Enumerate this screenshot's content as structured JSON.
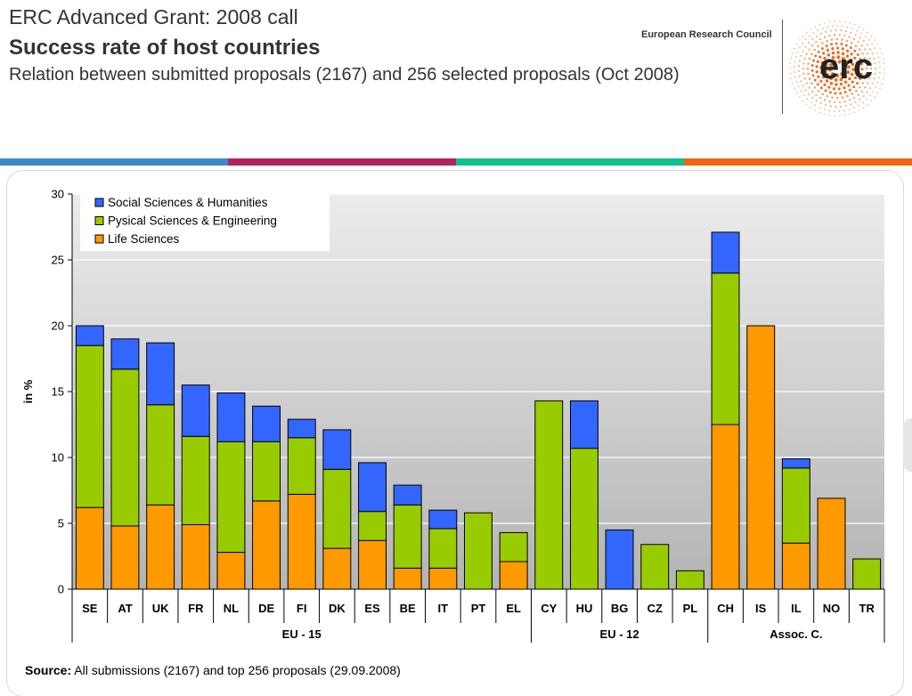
{
  "header": {
    "title": "ERC Advanced Grant: 2008 call",
    "subtitle": "Success rate of host countries",
    "description": "Relation between submitted proposals (2167) and 256 selected proposals (Oct 2008)",
    "organization": "European Research Council",
    "logo_text": "erc",
    "logo_icon": "erc-dot-sunburst-logo"
  },
  "stripe_colors": [
    "#3a8ac8",
    "#b0245e",
    "#12c08c",
    "#ee6411"
  ],
  "footer": {
    "source_label": "Source:",
    "source_text": "All submissions (2167) and top 256 proposals (29.09.2008)"
  },
  "chart_data": {
    "type": "bar",
    "stacked": true,
    "ylabel": "in %",
    "xlabel": "",
    "ylim": [
      0,
      30
    ],
    "yticks": [
      0,
      5,
      10,
      15,
      20,
      25,
      30
    ],
    "grid": true,
    "legend_position": "top-left",
    "categories": [
      "SE",
      "AT",
      "UK",
      "FR",
      "NL",
      "DE",
      "FI",
      "DK",
      "ES",
      "BE",
      "IT",
      "PT",
      "EL",
      "CY",
      "HU",
      "BG",
      "CZ",
      "PL",
      "CH",
      "IS",
      "IL",
      "NO",
      "TR"
    ],
    "groups": [
      {
        "name": "EU - 15",
        "categories": [
          "SE",
          "AT",
          "UK",
          "FR",
          "NL",
          "DE",
          "FI",
          "DK",
          "ES",
          "BE",
          "IT",
          "PT",
          "EL"
        ]
      },
      {
        "name": "EU - 12",
        "categories": [
          "CY",
          "HU",
          "BG",
          "CZ",
          "PL"
        ]
      },
      {
        "name": "Assoc. C.",
        "categories": [
          "CH",
          "IS",
          "IL",
          "NO",
          "TR"
        ]
      }
    ],
    "series": [
      {
        "name": "Life Sciences",
        "color": "#ff9900",
        "values": [
          6.2,
          4.8,
          6.4,
          4.9,
          2.8,
          6.7,
          7.2,
          3.1,
          3.7,
          1.6,
          1.6,
          0,
          2.1,
          0,
          0,
          0,
          0,
          0,
          12.5,
          20.0,
          3.5,
          6.9,
          0
        ]
      },
      {
        "name": "Pysical Sciences & Engineering",
        "color": "#99cc00",
        "values": [
          12.3,
          11.9,
          7.6,
          6.7,
          8.4,
          4.5,
          4.3,
          6.0,
          2.2,
          4.8,
          3.0,
          5.8,
          2.2,
          14.3,
          10.7,
          0,
          3.4,
          1.4,
          11.5,
          0,
          5.7,
          0,
          2.3
        ]
      },
      {
        "name": "Social Sciences & Humanities",
        "color": "#3366ff",
        "values": [
          1.5,
          2.3,
          4.7,
          3.9,
          3.7,
          2.7,
          1.4,
          3.0,
          3.7,
          1.5,
          1.4,
          0,
          0,
          0,
          3.6,
          4.5,
          0,
          0,
          3.1,
          0,
          0.7,
          0,
          0
        ]
      }
    ],
    "legend_order": [
      "Social Sciences & Humanities",
      "Pysical Sciences & Engineering",
      "Life Sciences"
    ]
  }
}
